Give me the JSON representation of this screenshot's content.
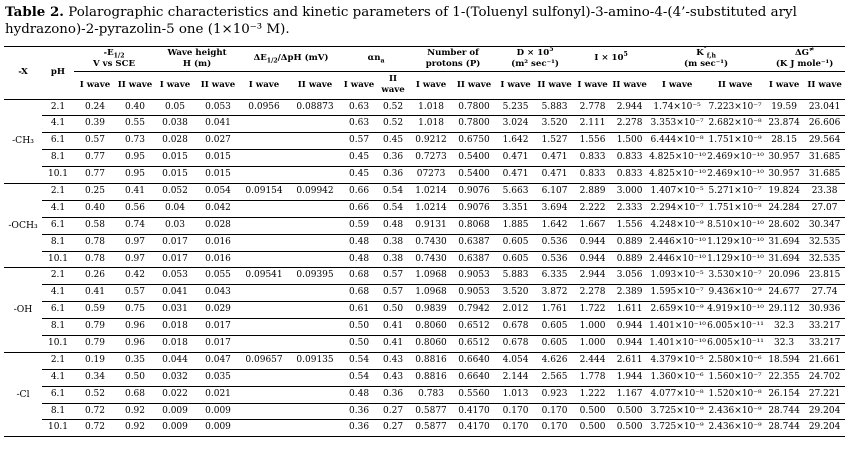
{
  "title": {
    "label": "Table 2.",
    "text": " Polarographic characteristics and kinetic parameters of 1-(Toluenyl sulfonyl)-3-amino-4-(4’-substituted aryl hydrazono)-2-pyrazolin-5 one (1×10⁻³ M)."
  },
  "table": {
    "header": {
      "x": "-X",
      "ph": "pH",
      "wave_i": "I wave",
      "wave_ii": "II wave",
      "groups": [
        {
          "pre": "-E",
          "sup": "",
          "sub": "1/2",
          "post": "",
          "unit": "V vs SCE"
        },
        {
          "pre": "Wave height",
          "sup": "",
          "sub": "",
          "post": "",
          "unit": "H (m)"
        },
        {
          "pre": "ΔE",
          "sup": "",
          "sub": "1/2",
          "post": "/ΔpH (mV)",
          "unit": ""
        },
        {
          "pre": "αn",
          "sup": "",
          "sub": "a",
          "post": "",
          "unit": ""
        },
        {
          "pre": "Number of",
          "sup": "",
          "sub": "",
          "post": "",
          "unit": "protons (P)"
        },
        {
          "pre": "D × 10",
          "sup": "5",
          "sub": "",
          "post": "",
          "unit": "(m² sec⁻¹)"
        },
        {
          "pre": "I × 10",
          "sup": "5",
          "sub": "",
          "post": "",
          "unit": ""
        },
        {
          "pre": "K",
          "sup": "°",
          "sub": "f,h",
          "post": "",
          "unit": "(m sec⁻¹)"
        },
        {
          "pre": "ΔG",
          "sup": "≠",
          "sub": "",
          "post": "",
          "unit": "(K J mole⁻¹)"
        }
      ]
    },
    "groups": [
      {
        "x": "-CH₃",
        "rows": [
          [
            "2.1",
            "0.24",
            "0.40",
            "0.05",
            "0.053",
            "0.0956",
            "0.08873",
            "0.63",
            "0.52",
            "1.018",
            "0.7800",
            "5.235",
            "5.883",
            "2.778",
            "2.944",
            "1.74×10⁻⁵",
            "7.223×10⁻⁷",
            "19.59",
            "23.041"
          ],
          [
            "4.1",
            "0.39",
            "0.55",
            "0.038",
            "0.041",
            "",
            "",
            "0.63",
            "0.52",
            "1.018",
            "0.7800",
            "3.024",
            "3.520",
            "2.111",
            "2.278",
            "3.353×10⁻⁷",
            "2.682×10⁻⁸",
            "23.874",
            "26.606"
          ],
          [
            "6.1",
            "0.57",
            "0.73",
            "0.028",
            "0.027",
            "",
            "",
            "0.57",
            "0.45",
            "0.9212",
            "0.6750",
            "1.642",
            "1.527",
            "1.556",
            "1.500",
            "6.444×10⁻⁸",
            "1.751×10⁻⁹",
            "28.15",
            "29.564"
          ],
          [
            "8.1",
            "0.77",
            "0.95",
            "0.015",
            "0.015",
            "",
            "",
            "0.45",
            "0.36",
            "0.7273",
            "0.5400",
            "0.471",
            "0.471",
            "0.833",
            "0.833",
            "4.825×10⁻¹⁰",
            "2.469×10⁻¹⁰",
            "30.957",
            "31.685"
          ],
          [
            "10.1",
            "0.77",
            "0.95",
            "0.015",
            "0.015",
            "",
            "",
            "0.45",
            "0.36",
            "07273",
            "0.5400",
            "0.471",
            "0.471",
            "0.833",
            "0.833",
            "4.825×10⁻¹⁰",
            "2.469×10⁻¹⁰",
            "30.957",
            "31.685"
          ]
        ]
      },
      {
        "x": "-OCH₃",
        "rows": [
          [
            "2.1",
            "0.25",
            "0.41",
            "0.052",
            "0.054",
            "0.09154",
            "0.09942",
            "0.66",
            "0.54",
            "1.0214",
            "0.9076",
            "5.663",
            "6.107",
            "2.889",
            "3.000",
            "1.407×10⁻⁵",
            "5.271×10⁻⁷",
            "19.824",
            "23.38"
          ],
          [
            "4.1",
            "0.40",
            "0.56",
            "0.04",
            "0.042",
            "",
            "",
            "0.66",
            "0.54",
            "1.0214",
            "0.9076",
            "3.351",
            "3.694",
            "2.222",
            "2.333",
            "2.294×10⁻⁷",
            "1.751×10⁻⁸",
            "24.284",
            "27.07"
          ],
          [
            "6.1",
            "0.58",
            "0.74",
            "0.03",
            "0.028",
            "",
            "",
            "0.59",
            "0.48",
            "0.9131",
            "0.8068",
            "1.885",
            "1.642",
            "1.667",
            "1.556",
            "4.248×10⁻⁹",
            "8.510×10⁻¹⁰",
            "28.602",
            "30.347"
          ],
          [
            "8.1",
            "0.78",
            "0.97",
            "0.017",
            "0.016",
            "",
            "",
            "0.48",
            "0.38",
            "0.7430",
            "0.6387",
            "0.605",
            "0.536",
            "0.944",
            "0.889",
            "2.446×10⁻¹⁰",
            "1.129×10⁻¹⁰",
            "31.694",
            "32.535"
          ],
          [
            "10.1",
            "0.78",
            "0.97",
            "0.017",
            "0.016",
            "",
            "",
            "0.48",
            "0.38",
            "0.7430",
            "0.6387",
            "0.605",
            "0.536",
            "0.944",
            "0.889",
            "2.446×10⁻¹⁰",
            "1.129×10⁻¹⁰",
            "31.694",
            "32.535"
          ]
        ]
      },
      {
        "x": "-OH",
        "rows": [
          [
            "2.1",
            "0.26",
            "0.42",
            "0.053",
            "0.055",
            "0.09541",
            "0.09395",
            "0.68",
            "0.57",
            "1.0968",
            "0.9053",
            "5.883",
            "6.335",
            "2.944",
            "3.056",
            "1.093×10⁻⁵",
            "3.530×10⁻⁷",
            "20.096",
            "23.815"
          ],
          [
            "4.1",
            "0.41",
            "0.57",
            "0.041",
            "0.043",
            "",
            "",
            "0.68",
            "0.57",
            "1.0968",
            "0.9053",
            "3.520",
            "3.872",
            "2.278",
            "2.389",
            "1.595×10⁻⁷",
            "9.436×10⁻⁹",
            "24.677",
            "27.74"
          ],
          [
            "6.1",
            "0.59",
            "0.75",
            "0.031",
            "0.029",
            "",
            "",
            "0.61",
            "0.50",
            "0.9839",
            "0.7942",
            "2.012",
            "1.761",
            "1.722",
            "1.611",
            "2.659×10⁻⁹",
            "4.919×10⁻¹⁰",
            "29.112",
            "30.936"
          ],
          [
            "8.1",
            "0.79",
            "0.96",
            "0.018",
            "0.017",
            "",
            "",
            "0.50",
            "0.41",
            "0.8060",
            "0.6512",
            "0.678",
            "0.605",
            "1.000",
            "0.944",
            "1.401×10⁻¹⁰",
            "6.005×10⁻¹¹",
            "32.3",
            "33.217"
          ],
          [
            "10.1",
            "0.79",
            "0.96",
            "0.018",
            "0.017",
            "",
            "",
            "0.50",
            "0.41",
            "0.8060",
            "0.6512",
            "0.678",
            "0.605",
            "1.000",
            "0.944",
            "1.401×10⁻¹⁰",
            "6.005×10⁻¹¹",
            "32.3",
            "33.217"
          ]
        ]
      },
      {
        "x": "-Cl",
        "rows": [
          [
            "2.1",
            "0.19",
            "0.35",
            "0.044",
            "0.047",
            "0.09657",
            "0.09135",
            "0.54",
            "0.43",
            "0.8816",
            "0.6640",
            "4.054",
            "4.626",
            "2.444",
            "2.611",
            "4.379×10⁻⁵",
            "2.580×10⁻⁶",
            "18.594",
            "21.661"
          ],
          [
            "4.1",
            "0.34",
            "0.50",
            "0.032",
            "0.035",
            "",
            "",
            "0.54",
            "0.43",
            "0.8816",
            "0.6640",
            "2.144",
            "2.565",
            "1.778",
            "1.944",
            "1.360×10⁻⁶",
            "1.560×10⁻⁷",
            "22.355",
            "24.702"
          ],
          [
            "6.1",
            "0.52",
            "0.68",
            "0.022",
            "0.021",
            "",
            "",
            "0.48",
            "0.36",
            "0.783",
            "0.5560",
            "1.013",
            "0.923",
            "1.222",
            "1.167",
            "4.077×10⁻⁸",
            "1.520×10⁻⁸",
            "26.154",
            "27.221"
          ],
          [
            "8.1",
            "0.72",
            "0.92",
            "0.009",
            "0.009",
            "",
            "",
            "0.36",
            "0.27",
            "0.5877",
            "0.4170",
            "0.170",
            "0.170",
            "0.500",
            "0.500",
            "3.725×10⁻⁹",
            "2.436×10⁻⁹",
            "28.744",
            "29.204"
          ],
          [
            "10.1",
            "0.72",
            "0.92",
            "0.009",
            "0.009",
            "",
            "",
            "0.36",
            "0.27",
            "0.5877",
            "0.4170",
            "0.170",
            "0.170",
            "0.500",
            "0.500",
            "3.725×10⁻⁹",
            "2.436×10⁻⁹",
            "28.744",
            "29.204"
          ]
        ]
      }
    ]
  }
}
